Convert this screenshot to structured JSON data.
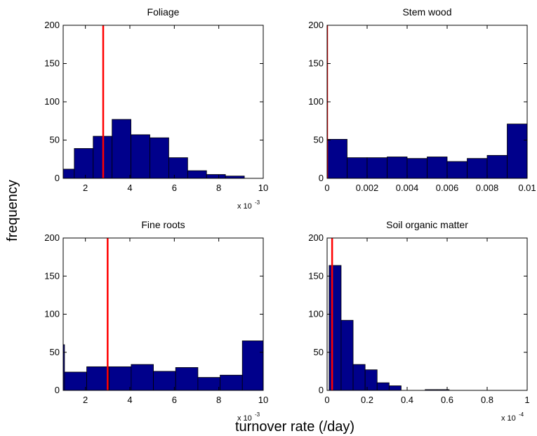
{
  "ylabel": "frequency",
  "xlabel": "turnover rate (/day)",
  "chart_data": [
    {
      "type": "histogram",
      "title": "Foliage",
      "color": "#00008b",
      "bins": [
        0.65,
        1.5,
        2.35,
        3.2,
        4.05,
        4.9,
        5.75,
        6.6,
        7.45,
        8.3,
        9.15
      ],
      "values": [
        12,
        39,
        55,
        77,
        57,
        53,
        27,
        10,
        5,
        3
      ],
      "vline": {
        "value": 2.8,
        "color": "#ff0000"
      },
      "xlim": [
        1,
        10
      ],
      "xticks": [
        2,
        4,
        6,
        8,
        10
      ],
      "xscale": {
        "text": "x 10",
        "power": -3
      },
      "ylim": [
        0,
        200
      ],
      "yticks": [
        0,
        50,
        100,
        150,
        200
      ]
    },
    {
      "type": "histogram",
      "title": "Stem wood",
      "color": "#00008b",
      "bins": [
        0,
        0.001,
        0.002,
        0.003,
        0.004,
        0.005,
        0.006,
        0.007,
        0.008,
        0.009,
        0.01
      ],
      "values": [
        51,
        27,
        27,
        28,
        26,
        28,
        22,
        26,
        30,
        71
      ],
      "vline": {
        "value": 0,
        "color": "#ff0000"
      },
      "xlim": [
        0,
        0.01
      ],
      "xticks": [
        0,
        0.002,
        0.004,
        0.006,
        0.008,
        0.01
      ],
      "ylim": [
        0,
        200
      ],
      "yticks": [
        0,
        50,
        100,
        150,
        200
      ]
    },
    {
      "type": "histogram",
      "title": "Fine roots",
      "color": "#00008b",
      "bins": [
        0.06,
        1.06,
        2.06,
        3.06,
        4.06,
        5.06,
        6.06,
        7.06,
        8.06,
        9.06,
        10.06
      ],
      "values": [
        60,
        24,
        31,
        31,
        34,
        25,
        30,
        17,
        20,
        65
      ],
      "vline": {
        "value": 3.0,
        "color": "#ff0000"
      },
      "xlim": [
        1,
        10
      ],
      "xticks": [
        2,
        4,
        6,
        8,
        10
      ],
      "xscale": {
        "text": "x 10",
        "power": -3
      },
      "ylim": [
        0,
        200
      ],
      "yticks": [
        0,
        50,
        100,
        150,
        200
      ]
    },
    {
      "type": "histogram",
      "title": "Soil organic matter",
      "color": "#00008b",
      "bins": [
        0.01,
        0.07,
        0.13,
        0.19,
        0.25,
        0.31,
        0.37,
        0.43,
        0.49,
        0.55,
        0.61
      ],
      "values": [
        164,
        92,
        34,
        27,
        10,
        6,
        0,
        0,
        1,
        1
      ],
      "vline": {
        "value": 0.025,
        "color": "#ff0000"
      },
      "xlim": [
        0,
        1
      ],
      "xticks": [
        0,
        0.2,
        0.4,
        0.6,
        0.8,
        1
      ],
      "xscale": {
        "text": "x 10",
        "power": -4
      },
      "ylim": [
        0,
        200
      ],
      "yticks": [
        0,
        50,
        100,
        150,
        200
      ]
    }
  ]
}
